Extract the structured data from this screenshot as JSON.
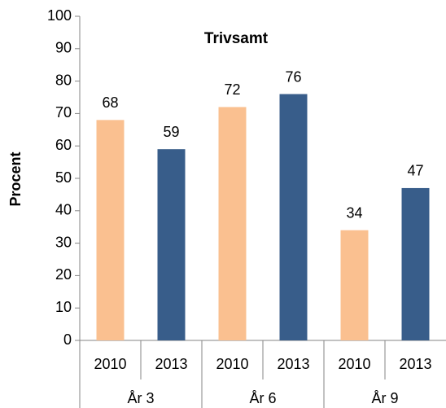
{
  "chart_data": {
    "type": "bar",
    "title": "Trivsamt",
    "ylabel": "Procent",
    "groups": [
      "År 3",
      "År 6",
      "År 9"
    ],
    "series": [
      {
        "name": "2010",
        "color": "#fac090",
        "values": [
          68,
          72,
          34
        ]
      },
      {
        "name": "2013",
        "color": "#385d8a",
        "values": [
          59,
          76,
          47
        ]
      }
    ],
    "ylim": [
      0,
      100
    ],
    "yticks": [
      0,
      10,
      20,
      30,
      40,
      50,
      60,
      70,
      80,
      90,
      100
    ],
    "grid": false
  }
}
